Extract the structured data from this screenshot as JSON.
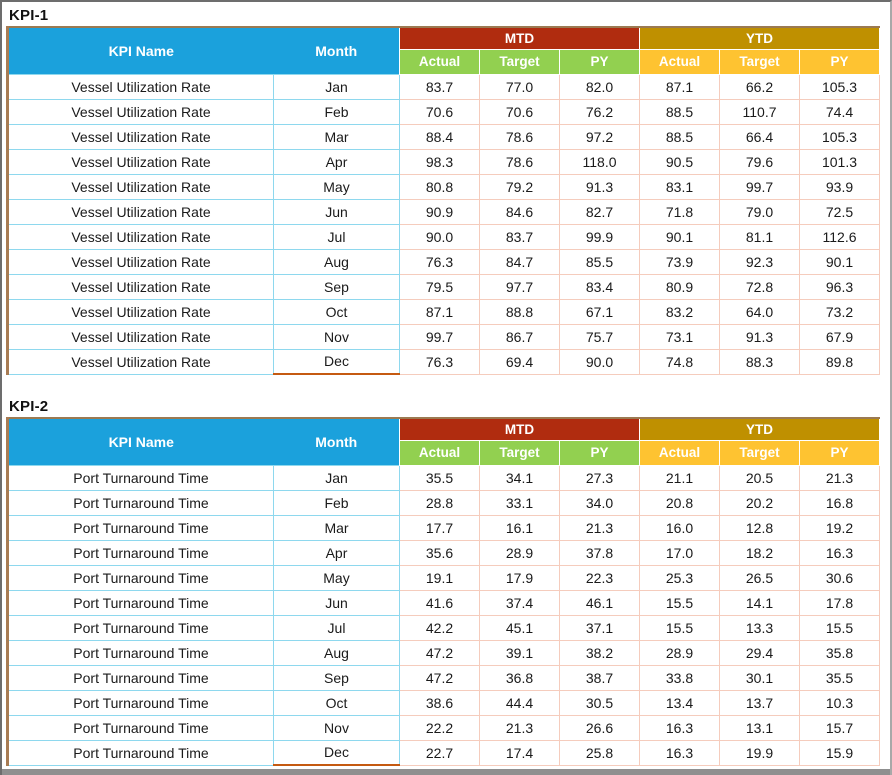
{
  "colors": {
    "header_blue": "#1ba1dc",
    "mtd_red": "#b02c0f",
    "ytd_gold": "#bf9000",
    "sub_green": "#92d050",
    "sub_amber": "#fec331",
    "border_cyan": "#8ed8ee",
    "border_pink": "#f5ccbd",
    "border_brown": "#a87c54",
    "dec_underline_orange": "#c55a11"
  },
  "tables": [
    {
      "title": "KPI-1",
      "kpi_name": "Vessel Utilization Rate",
      "headers": {
        "kpi_name": "KPI Name",
        "month": "Month",
        "mtd": "MTD",
        "ytd": "YTD",
        "sub": [
          "Actual",
          "Target",
          "PY"
        ]
      },
      "rows": [
        {
          "month": "Jan",
          "mtd": [
            "83.7",
            "77.0",
            "82.0"
          ],
          "ytd": [
            "87.1",
            "66.2",
            "105.3"
          ]
        },
        {
          "month": "Feb",
          "mtd": [
            "70.6",
            "70.6",
            "76.2"
          ],
          "ytd": [
            "88.5",
            "110.7",
            "74.4"
          ]
        },
        {
          "month": "Mar",
          "mtd": [
            "88.4",
            "78.6",
            "97.2"
          ],
          "ytd": [
            "88.5",
            "66.4",
            "105.3"
          ]
        },
        {
          "month": "Apr",
          "mtd": [
            "98.3",
            "78.6",
            "118.0"
          ],
          "ytd": [
            "90.5",
            "79.6",
            "101.3"
          ]
        },
        {
          "month": "May",
          "mtd": [
            "80.8",
            "79.2",
            "91.3"
          ],
          "ytd": [
            "83.1",
            "99.7",
            "93.9"
          ]
        },
        {
          "month": "Jun",
          "mtd": [
            "90.9",
            "84.6",
            "82.7"
          ],
          "ytd": [
            "71.8",
            "79.0",
            "72.5"
          ]
        },
        {
          "month": "Jul",
          "mtd": [
            "90.0",
            "83.7",
            "99.9"
          ],
          "ytd": [
            "90.1",
            "81.1",
            "112.6"
          ]
        },
        {
          "month": "Aug",
          "mtd": [
            "76.3",
            "84.7",
            "85.5"
          ],
          "ytd": [
            "73.9",
            "92.3",
            "90.1"
          ]
        },
        {
          "month": "Sep",
          "mtd": [
            "79.5",
            "97.7",
            "83.4"
          ],
          "ytd": [
            "80.9",
            "72.8",
            "96.3"
          ]
        },
        {
          "month": "Oct",
          "mtd": [
            "87.1",
            "88.8",
            "67.1"
          ],
          "ytd": [
            "83.2",
            "64.0",
            "73.2"
          ]
        },
        {
          "month": "Nov",
          "mtd": [
            "99.7",
            "86.7",
            "75.7"
          ],
          "ytd": [
            "73.1",
            "91.3",
            "67.9"
          ]
        },
        {
          "month": "Dec",
          "mtd": [
            "76.3",
            "69.4",
            "90.0"
          ],
          "ytd": [
            "74.8",
            "88.3",
            "89.8"
          ]
        }
      ]
    },
    {
      "title": "KPI-2",
      "kpi_name": "Port Turnaround Time",
      "headers": {
        "kpi_name": "KPI Name",
        "month": "Month",
        "mtd": "MTD",
        "ytd": "YTD",
        "sub": [
          "Actual",
          "Target",
          "PY"
        ]
      },
      "rows": [
        {
          "month": "Jan",
          "mtd": [
            "35.5",
            "34.1",
            "27.3"
          ],
          "ytd": [
            "21.1",
            "20.5",
            "21.3"
          ]
        },
        {
          "month": "Feb",
          "mtd": [
            "28.8",
            "33.1",
            "34.0"
          ],
          "ytd": [
            "20.8",
            "20.2",
            "16.8"
          ]
        },
        {
          "month": "Mar",
          "mtd": [
            "17.7",
            "16.1",
            "21.3"
          ],
          "ytd": [
            "16.0",
            "12.8",
            "19.2"
          ]
        },
        {
          "month": "Apr",
          "mtd": [
            "35.6",
            "28.9",
            "37.8"
          ],
          "ytd": [
            "17.0",
            "18.2",
            "16.3"
          ]
        },
        {
          "month": "May",
          "mtd": [
            "19.1",
            "17.9",
            "22.3"
          ],
          "ytd": [
            "25.3",
            "26.5",
            "30.6"
          ]
        },
        {
          "month": "Jun",
          "mtd": [
            "41.6",
            "37.4",
            "46.1"
          ],
          "ytd": [
            "15.5",
            "14.1",
            "17.8"
          ]
        },
        {
          "month": "Jul",
          "mtd": [
            "42.2",
            "45.1",
            "37.1"
          ],
          "ytd": [
            "15.5",
            "13.3",
            "15.5"
          ]
        },
        {
          "month": "Aug",
          "mtd": [
            "47.2",
            "39.1",
            "38.2"
          ],
          "ytd": [
            "28.9",
            "29.4",
            "35.8"
          ]
        },
        {
          "month": "Sep",
          "mtd": [
            "47.2",
            "36.8",
            "38.7"
          ],
          "ytd": [
            "33.8",
            "30.1",
            "35.5"
          ]
        },
        {
          "month": "Oct",
          "mtd": [
            "38.6",
            "44.4",
            "30.5"
          ],
          "ytd": [
            "13.4",
            "13.7",
            "10.3"
          ]
        },
        {
          "month": "Nov",
          "mtd": [
            "22.2",
            "21.3",
            "26.6"
          ],
          "ytd": [
            "16.3",
            "13.1",
            "15.7"
          ]
        },
        {
          "month": "Dec",
          "mtd": [
            "22.7",
            "17.4",
            "25.8"
          ],
          "ytd": [
            "16.3",
            "19.9",
            "15.9"
          ]
        }
      ]
    }
  ]
}
